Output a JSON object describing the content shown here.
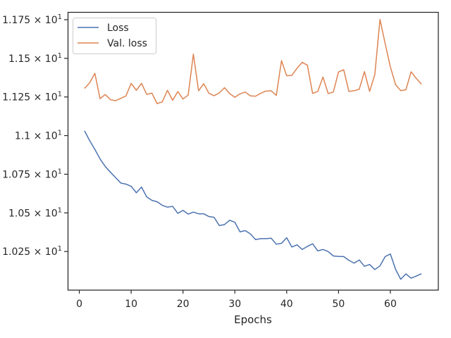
{
  "chart_data": {
    "type": "line",
    "title": "",
    "xlabel": "Epochs",
    "ylabel": "",
    "xlim": [
      -2.25,
      69.25
    ],
    "ylim": [
      10.0,
      11.8
    ],
    "x_ticks": [
      0,
      10,
      20,
      30,
      40,
      50,
      60
    ],
    "y_ticks": [
      {
        "value": 10.25,
        "label": "1.025 × 10^1"
      },
      {
        "value": 10.5,
        "label": "1.05 × 10^1"
      },
      {
        "value": 10.75,
        "label": "1.075 × 10^1"
      },
      {
        "value": 11.0,
        "label": "1.1 × 10^1"
      },
      {
        "value": 11.25,
        "label": "1.125 × 10^1"
      },
      {
        "value": 11.5,
        "label": "1.15 × 10^1"
      },
      {
        "value": 11.75,
        "label": "1.175 × 10^1"
      }
    ],
    "grid": false,
    "legend_position": "top-left",
    "x": [
      1,
      2,
      3,
      4,
      5,
      6,
      7,
      8,
      9,
      10,
      11,
      12,
      13,
      14,
      15,
      16,
      17,
      18,
      19,
      20,
      21,
      22,
      23,
      24,
      25,
      26,
      27,
      28,
      29,
      30,
      31,
      32,
      33,
      34,
      35,
      36,
      37,
      38,
      39,
      40,
      41,
      42,
      43,
      44,
      45,
      46,
      47,
      48,
      49,
      50,
      51,
      52,
      53,
      54,
      55,
      56,
      57,
      58,
      59,
      60,
      61,
      62,
      63,
      64,
      65,
      66
    ],
    "series": [
      {
        "name": "Loss",
        "color": "#4c72b0",
        "values": [
          11.031,
          10.967,
          10.911,
          10.849,
          10.8,
          10.763,
          10.728,
          10.693,
          10.686,
          10.672,
          10.63,
          10.667,
          10.603,
          10.581,
          10.572,
          10.549,
          10.537,
          10.542,
          10.497,
          10.516,
          10.492,
          10.505,
          10.494,
          10.494,
          10.476,
          10.471,
          10.418,
          10.424,
          10.452,
          10.439,
          10.377,
          10.385,
          10.364,
          10.327,
          10.333,
          10.333,
          10.336,
          10.297,
          10.303,
          10.339,
          10.279,
          10.293,
          10.263,
          10.283,
          10.3,
          10.254,
          10.263,
          10.25,
          10.221,
          10.218,
          10.217,
          10.193,
          10.175,
          10.195,
          10.154,
          10.166,
          10.133,
          10.157,
          10.217,
          10.234,
          10.135,
          10.07,
          10.105,
          10.077,
          10.091,
          10.106
        ]
      },
      {
        "name": "Val. loss",
        "color": "#dd8452",
        "values": [
          11.305,
          11.342,
          11.403,
          11.239,
          11.266,
          11.232,
          11.226,
          11.241,
          11.257,
          11.338,
          11.293,
          11.338,
          11.267,
          11.275,
          11.207,
          11.218,
          11.293,
          11.228,
          11.285,
          11.237,
          11.262,
          11.527,
          11.29,
          11.336,
          11.274,
          11.258,
          11.276,
          11.31,
          11.272,
          11.248,
          11.27,
          11.282,
          11.257,
          11.255,
          11.274,
          11.288,
          11.29,
          11.26,
          11.485,
          11.387,
          11.39,
          11.436,
          11.474,
          11.455,
          11.273,
          11.286,
          11.379,
          11.272,
          11.282,
          11.412,
          11.426,
          11.286,
          11.29,
          11.3,
          11.414,
          11.286,
          11.395,
          11.752,
          11.595,
          11.445,
          11.33,
          11.291,
          11.297,
          11.413,
          11.37,
          11.333
        ]
      }
    ]
  }
}
